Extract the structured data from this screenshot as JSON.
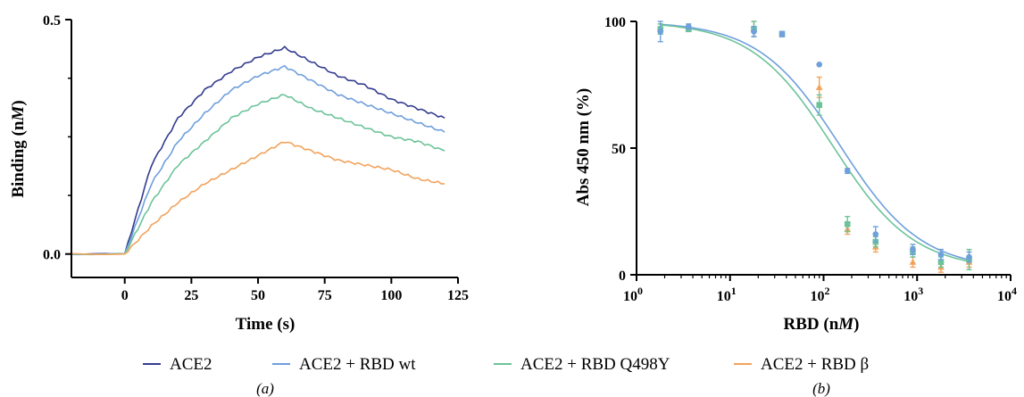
{
  "colors": {
    "ace2": "#323b8f",
    "rbd_wt": "#6f9fdc",
    "rbd_q498y": "#6cc39a",
    "rbd_beta": "#f2a35b"
  },
  "legend": [
    {
      "label": "ACE2",
      "color": "#323b8f"
    },
    {
      "label": "ACE2 + RBD wt",
      "color": "#6f9fdc"
    },
    {
      "label": "ACE2 + RBD Q498Y",
      "color": "#6cc39a"
    },
    {
      "label": "ACE2 + RBD β",
      "color": "#f2a35b"
    }
  ],
  "panel_labels": {
    "a": "(a)",
    "b": "(b)"
  },
  "chart_data": [
    {
      "type": "line",
      "panel": "(a)",
      "xlabel": "Time (s)",
      "ylabel": "Binding (nM)",
      "xlim": [
        -20,
        125
      ],
      "ylim": [
        -0.05,
        0.5
      ],
      "xticks": [
        0,
        25,
        50,
        75,
        100,
        125
      ],
      "yticks": [
        0.0,
        0.5
      ],
      "ytick_labels": [
        "0.0",
        "0.5"
      ],
      "association_end_s": 60,
      "series": [
        {
          "name": "ACE2",
          "x": [
            -20,
            0,
            10,
            20,
            30,
            40,
            50,
            60,
            70,
            80,
            90,
            100,
            110,
            120
          ],
          "y": [
            0.0,
            0.0,
            0.19,
            0.29,
            0.35,
            0.39,
            0.42,
            0.44,
            0.41,
            0.38,
            0.36,
            0.33,
            0.31,
            0.29
          ]
        },
        {
          "name": "ACE2 + RBD wt",
          "x": [
            -20,
            0,
            10,
            20,
            30,
            40,
            50,
            60,
            70,
            80,
            90,
            100,
            110,
            120
          ],
          "y": [
            0.0,
            0.0,
            0.15,
            0.24,
            0.3,
            0.35,
            0.38,
            0.4,
            0.37,
            0.34,
            0.32,
            0.3,
            0.28,
            0.26
          ]
        },
        {
          "name": "ACE2 + RBD Q498Y",
          "x": [
            -20,
            0,
            10,
            20,
            30,
            40,
            50,
            60,
            70,
            80,
            90,
            100,
            110,
            120
          ],
          "y": [
            0.0,
            0.0,
            0.11,
            0.19,
            0.24,
            0.29,
            0.32,
            0.34,
            0.31,
            0.29,
            0.27,
            0.25,
            0.24,
            0.22
          ]
        },
        {
          "name": "ACE2 + RBD β",
          "x": [
            -20,
            0,
            10,
            20,
            30,
            40,
            50,
            60,
            70,
            80,
            90,
            100,
            110,
            120
          ],
          "y": [
            0.0,
            0.0,
            0.06,
            0.11,
            0.15,
            0.18,
            0.21,
            0.24,
            0.22,
            0.2,
            0.19,
            0.18,
            0.16,
            0.15
          ]
        }
      ]
    },
    {
      "type": "scatter",
      "panel": "(b)",
      "xlabel": "RBD (nM)",
      "ylabel": "Abs 450 nm (%)",
      "xscale": "log",
      "xlim": [
        1,
        10000
      ],
      "ylim": [
        0,
        100
      ],
      "xticks": [
        1,
        10,
        100,
        1000,
        10000
      ],
      "xtick_labels": [
        "10^0",
        "10^1",
        "10^2",
        "10^3",
        "10^4"
      ],
      "yticks": [
        0,
        50,
        100
      ],
      "fit_curves": [
        {
          "name": "ACE2 + RBD wt",
          "ic50_nM": 150,
          "top": 100,
          "bottom": 2,
          "hill": 1.0
        },
        {
          "name": "ACE2 + RBD Q498Y",
          "ic50_nM": 125,
          "top": 100,
          "bottom": 2,
          "hill": 1.0
        }
      ],
      "series": [
        {
          "name": "ACE2 + RBD wt",
          "marker": "circle",
          "x": [
            1.8,
            3.6,
            18,
            36,
            90,
            180,
            360,
            900,
            1800,
            3600
          ],
          "y": [
            96,
            98,
            96,
            95,
            83,
            41,
            16,
            10,
            8,
            7
          ],
          "err": [
            4,
            1,
            2,
            1,
            0,
            1,
            3,
            2,
            2,
            2
          ]
        },
        {
          "name": "ACE2 + RBD Q498Y",
          "marker": "square",
          "x": [
            1.8,
            3.6,
            18,
            36,
            90,
            180,
            360,
            900,
            1800,
            3600
          ],
          "y": [
            97,
            97,
            97,
            95,
            67,
            20,
            13,
            9,
            5,
            6
          ],
          "err": [
            2,
            1,
            3,
            1,
            4,
            3,
            2,
            2,
            2,
            4
          ]
        },
        {
          "name": "ACE2 + RBD β",
          "marker": "triangle",
          "x": [
            1.8,
            3.6,
            18,
            36,
            90,
            180,
            360,
            900,
            1800,
            3600
          ],
          "y": [
            97,
            97,
            97,
            95,
            74,
            18,
            11,
            5,
            3,
            5
          ],
          "err": [
            2,
            1,
            3,
            1,
            4,
            2,
            2,
            2,
            2,
            2
          ]
        }
      ]
    }
  ]
}
